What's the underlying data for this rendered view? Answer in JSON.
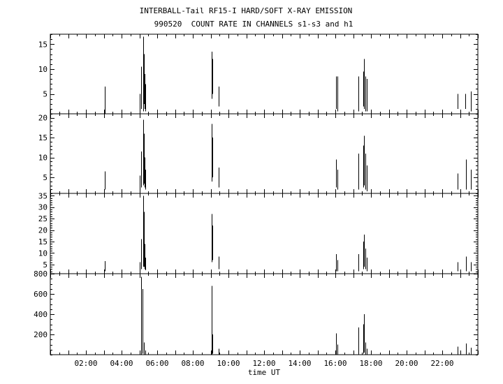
{
  "title": "INTERBALL-Tail RF15-I HARD/SOFT X-RAY EMISSION",
  "subtitle": "990520  COUNT RATE IN CHANNELS s1-s3 and h1",
  "chart_data": {
    "type": "line",
    "xlabel": "time UT",
    "xlim": [
      0,
      24
    ],
    "x_ticks": [
      "02:00",
      "04:00",
      "06:00",
      "08:00",
      "10:00",
      "12:00",
      "14:00",
      "16:00",
      "18:00",
      "20:00",
      "22:00"
    ],
    "x_tick_hours": [
      2,
      4,
      6,
      8,
      10,
      12,
      14,
      16,
      18,
      20,
      22
    ],
    "panels": [
      {
        "name": "s1",
        "ylim": [
          1,
          17
        ],
        "yticks": [
          5,
          10,
          15
        ],
        "spikes": [
          {
            "t": 3.05,
            "lo": 1,
            "hi": 6.5
          },
          {
            "t": 5.0,
            "lo": 1,
            "hi": 5
          },
          {
            "t": 5.1,
            "lo": 2,
            "hi": 10.5
          },
          {
            "t": 5.2,
            "lo": 1.5,
            "hi": 16.5
          },
          {
            "t": 5.25,
            "lo": 3,
            "hi": 13
          },
          {
            "t": 5.3,
            "lo": 2,
            "hi": 9
          },
          {
            "t": 5.35,
            "lo": 1.5,
            "hi": 7
          },
          {
            "t": 9.05,
            "lo": 4,
            "hi": 13.5
          },
          {
            "t": 9.1,
            "lo": 5,
            "hi": 12
          },
          {
            "t": 9.45,
            "lo": 2.5,
            "hi": 6.5
          },
          {
            "t": 16.05,
            "lo": 2,
            "hi": 8.5
          },
          {
            "t": 16.12,
            "lo": 1.5,
            "hi": 8.5
          },
          {
            "t": 17.3,
            "lo": 1.5,
            "hi": 8.5
          },
          {
            "t": 17.55,
            "lo": 2.5,
            "hi": 9.5
          },
          {
            "t": 17.62,
            "lo": 2,
            "hi": 12
          },
          {
            "t": 17.68,
            "lo": 1.5,
            "hi": 8.5
          },
          {
            "t": 17.75,
            "lo": 1.5,
            "hi": 8
          },
          {
            "t": 22.85,
            "lo": 2,
            "hi": 5
          },
          {
            "t": 23.3,
            "lo": 2,
            "hi": 5
          },
          {
            "t": 23.6,
            "lo": 1.5,
            "hi": 5.5
          }
        ]
      },
      {
        "name": "s2",
        "ylim": [
          1,
          21
        ],
        "yticks": [
          5,
          10,
          15,
          20
        ],
        "spikes": [
          {
            "t": 3.05,
            "lo": 2,
            "hi": 6.5
          },
          {
            "t": 5.0,
            "lo": 1.5,
            "hi": 5.5
          },
          {
            "t": 5.1,
            "lo": 2.5,
            "hi": 11.5
          },
          {
            "t": 5.2,
            "lo": 3,
            "hi": 19.5
          },
          {
            "t": 5.25,
            "lo": 3.5,
            "hi": 16
          },
          {
            "t": 5.3,
            "lo": 2.5,
            "hi": 10
          },
          {
            "t": 5.35,
            "lo": 2,
            "hi": 7
          },
          {
            "t": 9.05,
            "lo": 4,
            "hi": 18.5
          },
          {
            "t": 9.1,
            "lo": 5,
            "hi": 15
          },
          {
            "t": 9.45,
            "lo": 2.5,
            "hi": 7.5
          },
          {
            "t": 16.05,
            "lo": 2.5,
            "hi": 9.5
          },
          {
            "t": 16.12,
            "lo": 2,
            "hi": 7
          },
          {
            "t": 17.3,
            "lo": 2,
            "hi": 11
          },
          {
            "t": 17.55,
            "lo": 2.5,
            "hi": 13
          },
          {
            "t": 17.62,
            "lo": 3,
            "hi": 15.5
          },
          {
            "t": 17.68,
            "lo": 2,
            "hi": 11
          },
          {
            "t": 17.75,
            "lo": 1.5,
            "hi": 8
          },
          {
            "t": 22.85,
            "lo": 2,
            "hi": 6
          },
          {
            "t": 23.35,
            "lo": 2,
            "hi": 9.5
          },
          {
            "t": 23.6,
            "lo": 2,
            "hi": 7
          }
        ]
      },
      {
        "name": "s3",
        "ylim": [
          1,
          36
        ],
        "yticks": [
          5,
          10,
          15,
          20,
          25,
          30,
          35
        ],
        "spikes": [
          {
            "t": 3.05,
            "lo": 2,
            "hi": 6.5
          },
          {
            "t": 5.0,
            "lo": 2,
            "hi": 6
          },
          {
            "t": 5.1,
            "lo": 3,
            "hi": 16
          },
          {
            "t": 5.2,
            "lo": 4,
            "hi": 35
          },
          {
            "t": 5.25,
            "lo": 4,
            "hi": 28
          },
          {
            "t": 5.3,
            "lo": 3,
            "hi": 14
          },
          {
            "t": 5.35,
            "lo": 2.5,
            "hi": 8
          },
          {
            "t": 9.05,
            "lo": 6,
            "hi": 27
          },
          {
            "t": 9.1,
            "lo": 7,
            "hi": 22
          },
          {
            "t": 9.45,
            "lo": 3,
            "hi": 8.5
          },
          {
            "t": 16.05,
            "lo": 2,
            "hi": 9.5
          },
          {
            "t": 16.12,
            "lo": 2,
            "hi": 7
          },
          {
            "t": 17.3,
            "lo": 2,
            "hi": 9.5
          },
          {
            "t": 17.55,
            "lo": 3,
            "hi": 15
          },
          {
            "t": 17.62,
            "lo": 4,
            "hi": 18
          },
          {
            "t": 17.68,
            "lo": 3,
            "hi": 12
          },
          {
            "t": 17.75,
            "lo": 2,
            "hi": 8
          },
          {
            "t": 22.85,
            "lo": 2,
            "hi": 6
          },
          {
            "t": 23.35,
            "lo": 2,
            "hi": 8.5
          },
          {
            "t": 23.6,
            "lo": 2,
            "hi": 6
          }
        ]
      },
      {
        "name": "h1",
        "ylim": [
          0,
          800
        ],
        "yticks": [
          200,
          400,
          600,
          800
        ],
        "spikes": [
          {
            "t": 5.1,
            "lo": 0,
            "hi": 770
          },
          {
            "t": 5.18,
            "lo": 10,
            "hi": 650
          },
          {
            "t": 5.25,
            "lo": 5,
            "hi": 120
          },
          {
            "t": 5.35,
            "lo": 0,
            "hi": 40
          },
          {
            "t": 9.05,
            "lo": 0,
            "hi": 680
          },
          {
            "t": 9.1,
            "lo": 10,
            "hi": 200
          },
          {
            "t": 9.45,
            "lo": 0,
            "hi": 60
          },
          {
            "t": 16.05,
            "lo": 0,
            "hi": 210
          },
          {
            "t": 16.12,
            "lo": 0,
            "hi": 100
          },
          {
            "t": 17.3,
            "lo": 0,
            "hi": 270
          },
          {
            "t": 17.55,
            "lo": 10,
            "hi": 300
          },
          {
            "t": 17.62,
            "lo": 20,
            "hi": 400
          },
          {
            "t": 17.68,
            "lo": 0,
            "hi": 120
          },
          {
            "t": 17.75,
            "lo": 0,
            "hi": 60
          },
          {
            "t": 22.85,
            "lo": 0,
            "hi": 80
          },
          {
            "t": 23.35,
            "lo": 0,
            "hi": 110
          },
          {
            "t": 23.6,
            "lo": 0,
            "hi": 70
          }
        ]
      }
    ]
  }
}
